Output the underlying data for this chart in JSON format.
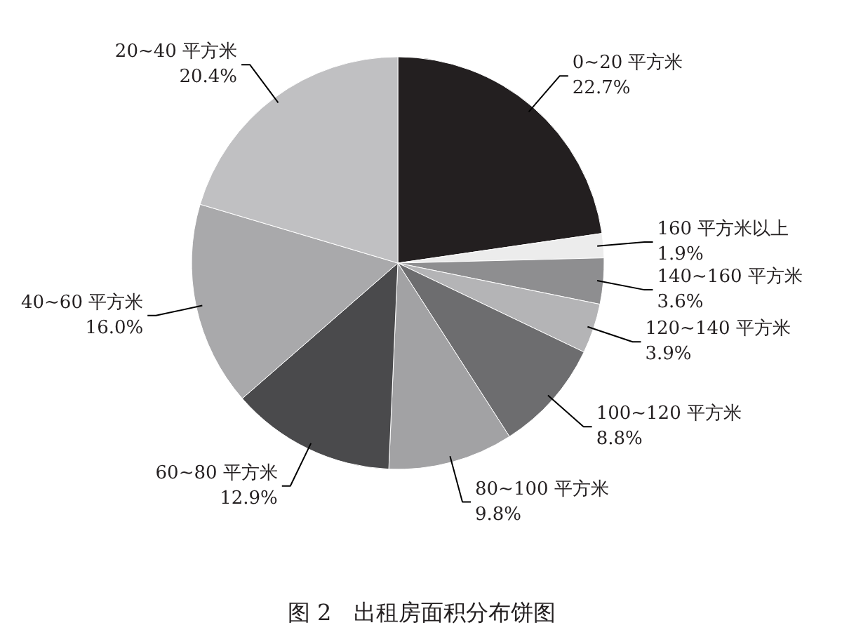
{
  "chart_data": {
    "type": "pie",
    "title": "图 2　出租房面积分布饼图",
    "categories": [
      "0~20 平方米",
      "160 平方米以上",
      "140~160 平方米",
      "120~140 平方米",
      "100~120 平方米",
      "80~100 平方米",
      "60~80 平方米",
      "40~60 平方米",
      "20~40 平方米"
    ],
    "values": [
      22.7,
      1.9,
      3.6,
      3.9,
      8.8,
      9.8,
      12.9,
      16.0,
      20.4
    ],
    "value_labels": [
      "22.7%",
      "1.9%",
      "3.6%",
      "3.9%",
      "8.8%",
      "9.8%",
      "12.9%",
      "16.0%",
      "20.4%"
    ],
    "colors": [
      "#231f20",
      "#ececec",
      "#8e8e90",
      "#b4b4b6",
      "#6d6d6f",
      "#a2a2a4",
      "#4a4a4c",
      "#a9a9ab",
      "#c0c0c2"
    ]
  }
}
